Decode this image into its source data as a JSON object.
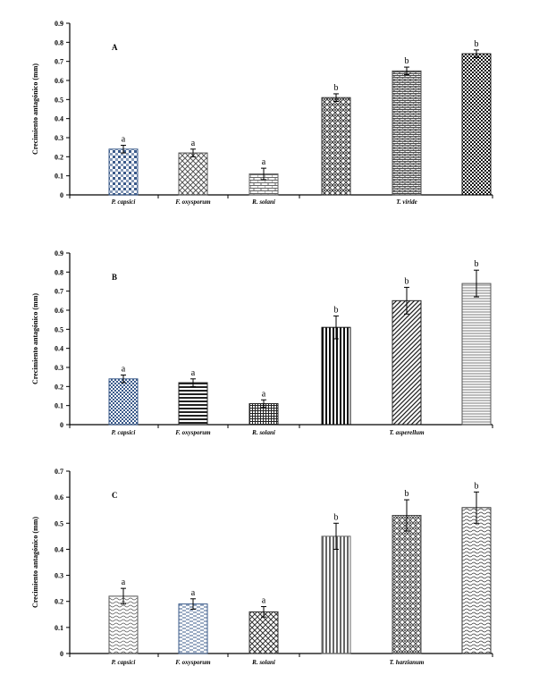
{
  "chart_data": [
    {
      "type": "bar",
      "panel": "A",
      "ylabel": "Crecimiento antagónico (mm)",
      "ylim": [
        0,
        0.9
      ],
      "yticks": [
        "0",
        "0.1",
        "0.2",
        "0.3",
        "0.4",
        "0.5",
        "0.6",
        "0.7",
        "0.8",
        "0.9"
      ],
      "category_labels": [
        "P. capsici",
        "F. oxysporum",
        "R. solani",
        "T. viride"
      ],
      "values": [
        0.24,
        0.22,
        0.11,
        0.51,
        0.65,
        0.74
      ],
      "errors": [
        0.02,
        0.02,
        0.03,
        0.02,
        0.02,
        0.02
      ],
      "significance": [
        "a",
        "a",
        "a",
        "b",
        "b",
        "b"
      ],
      "patterns": [
        "weave",
        "crosshatch",
        "brick",
        "diamond",
        "brick2",
        "checker"
      ],
      "colors": [
        "#3a5a8a",
        "#555555",
        "#666666",
        "#333333",
        "#444444",
        "#111111"
      ]
    },
    {
      "type": "bar",
      "panel": "B",
      "ylabel": "Crecimiento antagónico (mm)",
      "ylim": [
        0,
        0.9
      ],
      "yticks": [
        "0",
        "0.1",
        "0.2",
        "0.3",
        "0.4",
        "0.5",
        "0.6",
        "0.7",
        "0.8",
        "0.9"
      ],
      "category_labels": [
        "P. capsici",
        "F. oxysporum",
        "R. solani",
        "T. asperellum"
      ],
      "values": [
        0.24,
        0.22,
        0.11,
        0.51,
        0.65,
        0.74
      ],
      "errors": [
        0.02,
        0.02,
        0.02,
        0.06,
        0.07,
        0.07
      ],
      "significance": [
        "a",
        "a",
        "a",
        "b",
        "b",
        "b"
      ],
      "patterns": [
        "checker",
        "hstripes",
        "grid",
        "vstripes",
        "diag",
        "hlines"
      ],
      "colors": [
        "#3a5a8a",
        "#222222",
        "#222222",
        "#111111",
        "#222222",
        "#555555"
      ]
    },
    {
      "type": "bar",
      "panel": "C",
      "ylabel": "Crecimiento antagónico (mm)",
      "ylim": [
        0,
        0.7
      ],
      "yticks": [
        "0",
        "0.1",
        "0.2",
        "0.3",
        "0.4",
        "0.5",
        "0.6",
        "0.7"
      ],
      "category_labels": [
        "P. capsici",
        "F. oxysporum",
        "R. solani",
        "T. harzianum"
      ],
      "values": [
        0.22,
        0.19,
        0.16,
        0.45,
        0.53,
        0.56
      ],
      "errors": [
        0.03,
        0.02,
        0.02,
        0.05,
        0.06,
        0.06
      ],
      "significance": [
        "a",
        "a",
        "a",
        "b",
        "b",
        "b"
      ],
      "patterns": [
        "wave",
        "dash",
        "crosshatch",
        "vstripes",
        "diamond",
        "wave2"
      ],
      "colors": [
        "#555555",
        "#3a5a8a",
        "#333333",
        "#666666",
        "#444444",
        "#333333"
      ]
    }
  ]
}
